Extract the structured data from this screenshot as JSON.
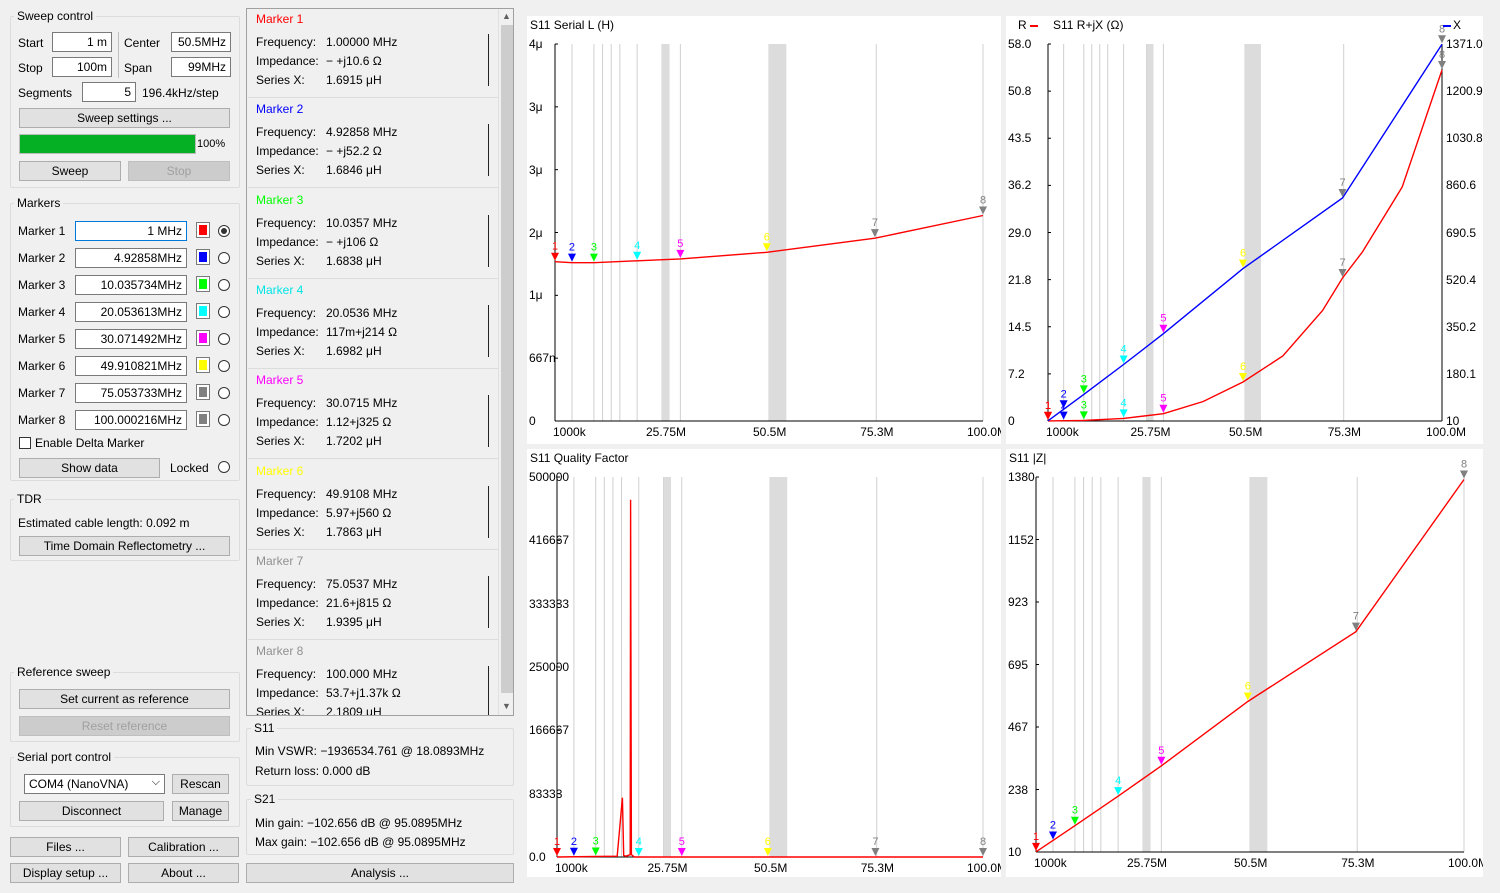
{
  "sweep": {
    "title": "Sweep control",
    "start_label": "Start",
    "start_value": "1 m",
    "stop_label": "Stop",
    "stop_value": "100m",
    "center_label": "Center",
    "center_value": "50.5MHz",
    "span_label": "Span",
    "span_value": "99MHz",
    "segments_label": "Segments",
    "segments_value": "5",
    "step_text": "196.4kHz/step",
    "settings_button": "Sweep settings ...",
    "progress_value": 100,
    "progress_text": "100%",
    "sweep_button": "Sweep",
    "stop_button": "Stop"
  },
  "markers": {
    "title": "Markers",
    "items": [
      {
        "label": "Marker 1",
        "value": "1 MHz",
        "color": "#ff0000",
        "selected": true
      },
      {
        "label": "Marker 2",
        "value": "4.92858MHz",
        "color": "#0000ff",
        "selected": false
      },
      {
        "label": "Marker 3",
        "value": "10.035734MHz",
        "color": "#00ff00",
        "selected": false
      },
      {
        "label": "Marker 4",
        "value": "20.053613MHz",
        "color": "#00ffff",
        "selected": false
      },
      {
        "label": "Marker 5",
        "value": "30.071492MHz",
        "color": "#ff00ff",
        "selected": false
      },
      {
        "label": "Marker 6",
        "value": "49.910821MHz",
        "color": "#ffff00",
        "selected": false
      },
      {
        "label": "Marker 7",
        "value": "75.053733MHz",
        "color": "#808080",
        "selected": false
      },
      {
        "label": "Marker 8",
        "value": "100.000216MHz",
        "color": "#808080",
        "selected": false
      }
    ],
    "delta_label": "Enable Delta Marker",
    "show_data_button": "Show data",
    "locked_label": "Locked"
  },
  "tdr": {
    "title": "TDR",
    "cable_text": "Estimated cable length: 0.092 m",
    "button": "Time Domain Reflectometry ..."
  },
  "reference": {
    "title": "Reference sweep",
    "set_button": "Set current as reference",
    "reset_button": "Reset reference"
  },
  "serial": {
    "title": "Serial port control",
    "port_value": "COM4 (NanoVNA)",
    "rescan_button": "Rescan",
    "disconnect_button": "Disconnect",
    "manage_button": "Manage"
  },
  "bottom": {
    "files_button": "Files ...",
    "calibration_button": "Calibration ...",
    "display_button": "Display setup ...",
    "about_button": "About ...",
    "analysis_button": "Analysis ..."
  },
  "marker_cards": [
    {
      "title": "Marker 1",
      "color": "#ff0000",
      "freq_label": "Frequency:",
      "freq": "1.00000 MHz",
      "imp_label": "Impedance:",
      "imp": "− +j10.6 Ω",
      "sx_label": "Series X:",
      "sx": "1.6915 μH"
    },
    {
      "title": "Marker 2",
      "color": "#0000ff",
      "freq_label": "Frequency:",
      "freq": "4.92858 MHz",
      "imp_label": "Impedance:",
      "imp": "− +j52.2 Ω",
      "sx_label": "Series X:",
      "sx": "1.6846 μH"
    },
    {
      "title": "Marker 3",
      "color": "#00ff00",
      "freq_label": "Frequency:",
      "freq": "10.0357 MHz",
      "imp_label": "Impedance:",
      "imp": "− +j106 Ω",
      "sx_label": "Series X:",
      "sx": "1.6838 μH"
    },
    {
      "title": "Marker 4",
      "color": "#00e5e5",
      "freq_label": "Frequency:",
      "freq": "20.0536 MHz",
      "imp_label": "Impedance:",
      "imp": "117m+j214 Ω",
      "sx_label": "Series X:",
      "sx": "1.6982 μH"
    },
    {
      "title": "Marker 5",
      "color": "#ff00ff",
      "freq_label": "Frequency:",
      "freq": "30.0715 MHz",
      "imp_label": "Impedance:",
      "imp": "1.12+j325 Ω",
      "sx_label": "Series X:",
      "sx": "1.7202 μH"
    },
    {
      "title": "Marker 6",
      "color": "#ffff00",
      "freq_label": "Frequency:",
      "freq": "49.9108 MHz",
      "imp_label": "Impedance:",
      "imp": "5.97+j560 Ω",
      "sx_label": "Series X:",
      "sx": "1.7863 μH"
    },
    {
      "title": "Marker 7",
      "color": "#909090",
      "freq_label": "Frequency:",
      "freq": "75.0537 MHz",
      "imp_label": "Impedance:",
      "imp": "21.6+j815 Ω",
      "sx_label": "Series X:",
      "sx": "1.9395 μH"
    },
    {
      "title": "Marker 8",
      "color": "#909090",
      "freq_label": "Frequency:",
      "freq": "100.000 MHz",
      "imp_label": "Impedance:",
      "imp": "53.7+j1.37k Ω",
      "sx_label": "Series X:",
      "sx": "2.1809 μH"
    }
  ],
  "s11_summary": {
    "title": "S11",
    "vswr": "Min VSWR:   −1936534.761 @ 18.0893MHz",
    "rl": "Return loss: 0.000 dB"
  },
  "s21_summary": {
    "title": "S21",
    "min": "Min gain:  −102.656 dB @ 95.0895MHz",
    "max": "Max gain:  −102.656 dB @ 95.0895MHz"
  },
  "chart_data": [
    {
      "type": "line",
      "title": "S11 Serial L (H)",
      "xlim": [
        1000000,
        100000000
      ],
      "ylim": [
        0,
        4
      ],
      "xticks": [
        "1000k",
        "25.75M",
        "50.5M",
        "75.3M",
        "100.0M"
      ],
      "yticks": [
        "4μ",
        "3μ",
        "3μ",
        "2μ",
        "1μ",
        "667n",
        "0"
      ],
      "series": [
        {
          "color": "#ff0000",
          "x_mhz": [
            1,
            4.93,
            10,
            20,
            30,
            50,
            75,
            100
          ],
          "y": [
            1.69,
            1.68,
            1.68,
            1.7,
            1.72,
            1.79,
            1.94,
            2.18
          ]
        }
      ],
      "markers": [
        {
          "n": "1",
          "x_mhz": 1,
          "y": 1.69
        },
        {
          "n": "2",
          "x_mhz": 4.93,
          "y": 1.68
        },
        {
          "n": "3",
          "x_mhz": 10,
          "y": 1.68
        },
        {
          "n": "4",
          "x_mhz": 20,
          "y": 1.7
        },
        {
          "n": "5",
          "x_mhz": 30,
          "y": 1.72
        },
        {
          "n": "6",
          "x_mhz": 50,
          "y": 1.79
        },
        {
          "n": "7",
          "x_mhz": 75,
          "y": 1.94
        },
        {
          "n": "8",
          "x_mhz": 100,
          "y": 2.18
        }
      ]
    },
    {
      "type": "line",
      "title": "S11  R+jX (Ω)",
      "left_label": "R",
      "right_label": "X",
      "xlim": [
        1000000,
        100000000
      ],
      "ylim_left": [
        0,
        58
      ],
      "ylim_right": [
        10,
        1371
      ],
      "xticks": [
        "1000k",
        "25.75M",
        "50.5M",
        "75.3M",
        "100.0M"
      ],
      "yticks_left": [
        "58.0",
        "50.8",
        "43.5",
        "36.2",
        "29.0",
        "21.8",
        "14.5",
        "7.2",
        "0"
      ],
      "yticks_right": [
        "1371.0",
        "1200.9",
        "1030.8",
        "860.6",
        "690.5",
        "520.4",
        "350.2",
        "180.1",
        "10"
      ],
      "series": [
        {
          "name": "R",
          "axis": "left",
          "color": "#ff0000",
          "x_mhz": [
            1,
            10,
            20,
            30,
            40,
            50,
            60,
            70,
            75,
            80,
            90,
            100
          ],
          "y": [
            0.02,
            0.1,
            0.4,
            1.12,
            3,
            6,
            10,
            17,
            22,
            26,
            36,
            54
          ]
        },
        {
          "name": "X",
          "axis": "right",
          "color": "#0000ff",
          "x_mhz": [
            1,
            4.93,
            10,
            20,
            30,
            50,
            75,
            100
          ],
          "y": [
            10.6,
            52.2,
            106,
            214,
            325,
            560,
            815,
            1370
          ]
        }
      ],
      "markers": [
        {
          "n": "1",
          "x_mhz": 1
        },
        {
          "n": "2",
          "x_mhz": 4.93
        },
        {
          "n": "3",
          "x_mhz": 10
        },
        {
          "n": "4",
          "x_mhz": 20
        },
        {
          "n": "5",
          "x_mhz": 30
        },
        {
          "n": "6",
          "x_mhz": 50
        },
        {
          "n": "7",
          "x_mhz": 75
        },
        {
          "n": "8",
          "x_mhz": 100
        }
      ]
    },
    {
      "type": "line",
      "title": "S11  Quality Factor",
      "xlim": [
        1000000,
        100000000
      ],
      "ylim": [
        0,
        500000
      ],
      "xticks": [
        "1000k",
        "25.75M",
        "50.5M",
        "75.3M",
        "100.0M"
      ],
      "yticks": [
        "500000",
        "416667",
        "333333",
        "250000",
        "166667",
        "83333",
        "0.0"
      ],
      "series": [
        {
          "color": "#ff0000",
          "x_mhz": [
            1,
            15,
            16.2,
            16.5,
            17,
            18,
            18.1,
            18.3,
            19,
            100
          ],
          "y": [
            0,
            1000,
            78000,
            2000,
            1000,
            3000,
            470000,
            3000,
            0,
            0
          ]
        }
      ],
      "markers": [
        {
          "n": "1",
          "x_mhz": 1
        },
        {
          "n": "2",
          "x_mhz": 4.93
        },
        {
          "n": "3",
          "x_mhz": 10
        },
        {
          "n": "4",
          "x_mhz": 20
        },
        {
          "n": "5",
          "x_mhz": 30
        },
        {
          "n": "6",
          "x_mhz": 50
        },
        {
          "n": "7",
          "x_mhz": 75
        },
        {
          "n": "8",
          "x_mhz": 100
        }
      ]
    },
    {
      "type": "line",
      "title": "S11  |Z|",
      "xlim": [
        1000000,
        100000000
      ],
      "ylim": [
        10,
        1380
      ],
      "xticks": [
        "1000k",
        "25.75M",
        "50.5M",
        "75.3M",
        "100.0M"
      ],
      "yticks": [
        "1380",
        "1152",
        "923",
        "695",
        "467",
        "238",
        "10"
      ],
      "series": [
        {
          "color": "#ff0000",
          "x_mhz": [
            1,
            4.93,
            10,
            20,
            30,
            50,
            75,
            100
          ],
          "y": [
            10.6,
            52.2,
            106,
            214,
            325,
            560,
            815,
            1371
          ]
        }
      ],
      "markers": [
        {
          "n": "1",
          "x_mhz": 1
        },
        {
          "n": "2",
          "x_mhz": 4.93
        },
        {
          "n": "3",
          "x_mhz": 10
        },
        {
          "n": "4",
          "x_mhz": 20
        },
        {
          "n": "5",
          "x_mhz": 30
        },
        {
          "n": "6",
          "x_mhz": 50
        },
        {
          "n": "7",
          "x_mhz": 75
        },
        {
          "n": "8",
          "x_mhz": 100
        }
      ]
    }
  ]
}
